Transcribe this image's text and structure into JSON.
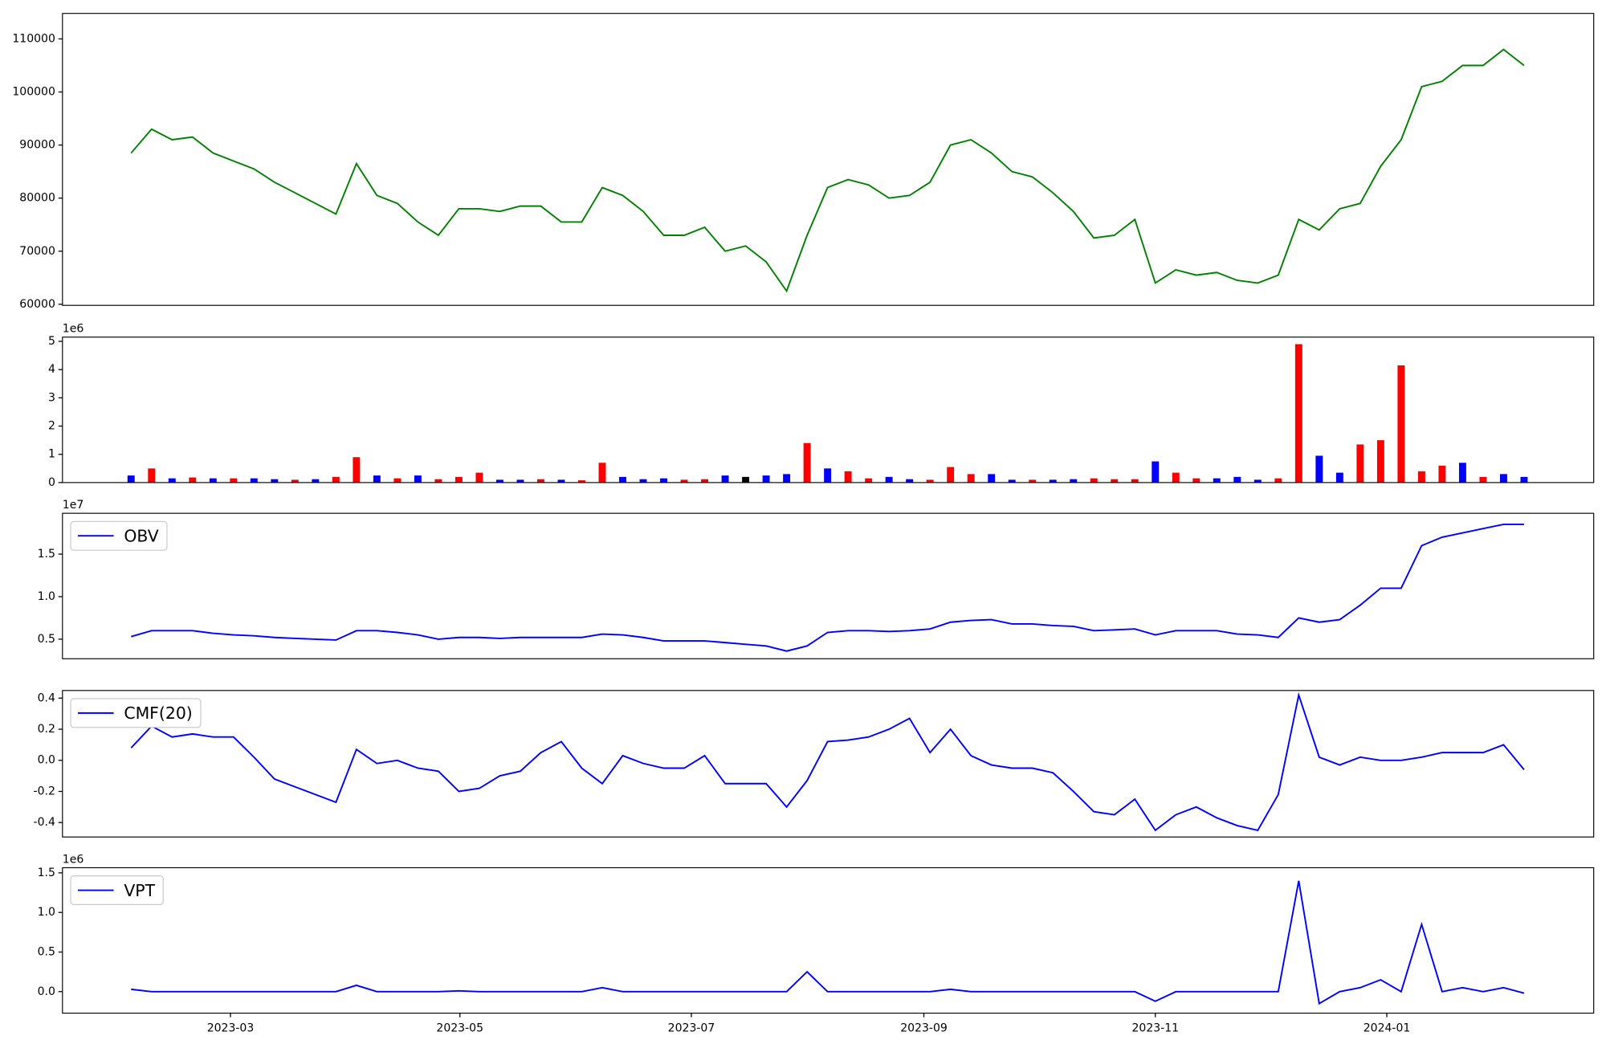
{
  "chart_data": [
    {
      "type": "line",
      "color": "#008000",
      "values": [
        88500,
        93000,
        91000,
        91500,
        88500,
        87000,
        85500,
        83000,
        81000,
        79000,
        77000,
        86500,
        80500,
        79000,
        75500,
        73000,
        78000,
        78000,
        77500,
        78500,
        78500,
        75500,
        75500,
        82000,
        80500,
        77500,
        73000,
        73000,
        74500,
        70000,
        71000,
        68000,
        62500,
        73000,
        82000,
        83500,
        82500,
        80000,
        80500,
        83000,
        90000,
        91000,
        88500,
        85000,
        84000,
        81000,
        77500,
        72500,
        73000,
        76000,
        64000,
        66500,
        65500,
        66000,
        64500,
        64000,
        65500,
        76000,
        74000,
        78000,
        79000,
        86000,
        91000,
        101000,
        102000,
        105000,
        105000,
        108000,
        105000
      ],
      "xlim": [
        -3.35,
        71.4
      ],
      "ylim": [
        59800,
        114800
      ],
      "yticks": [
        60000,
        70000,
        80000,
        90000,
        100000,
        110000
      ]
    },
    {
      "type": "bar",
      "offset_text": "1e6",
      "values": [
        0.25,
        0.5,
        0.15,
        0.18,
        0.15,
        0.15,
        0.15,
        0.12,
        0.1,
        0.12,
        0.2,
        0.9,
        0.25,
        0.15,
        0.25,
        0.12,
        0.2,
        0.35,
        0.1,
        0.1,
        0.12,
        0.1,
        0.08,
        0.7,
        0.2,
        0.12,
        0.15,
        0.1,
        0.12,
        0.25,
        0.2,
        0.25,
        0.3,
        1.4,
        0.5,
        0.4,
        0.15,
        0.2,
        0.12,
        0.1,
        0.55,
        0.3,
        0.3,
        0.1,
        0.1,
        0.1,
        0.12,
        0.15,
        0.12,
        0.12,
        0.75,
        0.35,
        0.15,
        0.15,
        0.2,
        0.1,
        0.15,
        4.9,
        0.95,
        0.35,
        1.35,
        1.5,
        4.15,
        0.4,
        0.6,
        0.7,
        0.2,
        0.3,
        0.2
      ],
      "colors": [
        "blue",
        "red",
        "blue",
        "red",
        "blue",
        "red",
        "blue",
        "blue",
        "red",
        "blue",
        "red",
        "red",
        "blue",
        "red",
        "blue",
        "red",
        "red",
        "red",
        "blue",
        "blue",
        "red",
        "blue",
        "red",
        "red",
        "blue",
        "blue",
        "blue",
        "red",
        "red",
        "blue",
        "black",
        "blue",
        "blue",
        "red",
        "blue",
        "red",
        "red",
        "blue",
        "blue",
        "red",
        "red",
        "red",
        "blue",
        "blue",
        "red",
        "blue",
        "blue",
        "red",
        "red",
        "red",
        "blue",
        "red",
        "red",
        "blue",
        "blue",
        "blue",
        "red",
        "red",
        "blue",
        "blue",
        "red",
        "red",
        "red",
        "red",
        "red",
        "blue",
        "red",
        "blue",
        "blue"
      ],
      "xlim": [
        -3.35,
        71.4
      ],
      "ylim": [
        0,
        5.15
      ],
      "yticks": [
        0,
        1,
        2,
        3,
        4,
        5
      ]
    },
    {
      "type": "line",
      "offset_text": "1e7",
      "legend": "upper left",
      "series": [
        {
          "name": "OBV",
          "color": "blue",
          "values": [
            0.53,
            0.6,
            0.6,
            0.6,
            0.57,
            0.55,
            0.54,
            0.52,
            0.51,
            0.5,
            0.49,
            0.6,
            0.6,
            0.58,
            0.55,
            0.5,
            0.52,
            0.52,
            0.51,
            0.52,
            0.52,
            0.52,
            0.52,
            0.56,
            0.55,
            0.52,
            0.48,
            0.48,
            0.48,
            0.46,
            0.44,
            0.42,
            0.36,
            0.42,
            0.58,
            0.6,
            0.6,
            0.59,
            0.6,
            0.62,
            0.7,
            0.72,
            0.73,
            0.68,
            0.68,
            0.66,
            0.65,
            0.6,
            0.61,
            0.62,
            0.55,
            0.6,
            0.6,
            0.6,
            0.56,
            0.55,
            0.52,
            0.75,
            0.7,
            0.73,
            0.9,
            1.1,
            1.1,
            1.6,
            1.7,
            1.75,
            1.8,
            1.85,
            1.85
          ]
        }
      ],
      "xlim": [
        -3.35,
        71.4
      ],
      "ylim": [
        0.27,
        1.98
      ],
      "yticks": [
        0.5,
        {
          "value": 1,
          "label": "1.0"
        },
        1.5
      ]
    },
    {
      "type": "line",
      "legend": "upper left",
      "series": [
        {
          "name": "CMF(20)",
          "color": "blue",
          "values": [
            0.08,
            0.22,
            0.15,
            0.17,
            0.15,
            0.15,
            0.02,
            -0.12,
            -0.17,
            -0.22,
            -0.27,
            0.07,
            -0.02,
            0.0,
            -0.05,
            -0.07,
            -0.2,
            -0.18,
            -0.1,
            -0.07,
            0.05,
            0.12,
            -0.05,
            -0.15,
            0.03,
            -0.02,
            -0.05,
            -0.05,
            0.03,
            -0.15,
            -0.15,
            -0.15,
            -0.3,
            -0.13,
            0.12,
            0.13,
            0.15,
            0.2,
            0.27,
            0.05,
            0.2,
            0.03,
            -0.03,
            -0.05,
            -0.05,
            -0.08,
            -0.2,
            -0.33,
            -0.35,
            -0.25,
            -0.45,
            -0.35,
            -0.3,
            -0.37,
            -0.42,
            -0.45,
            -0.22,
            0.42,
            0.02,
            -0.03,
            0.02,
            0.0,
            0.0,
            0.02,
            0.05,
            0.05,
            0.05,
            0.1,
            -0.06
          ]
        }
      ],
      "xlim": [
        -3.35,
        71.4
      ],
      "ylim": [
        -0.493,
        0.449
      ],
      "yticks": [
        -0.4,
        -0.2,
        {
          "value": 0,
          "label": "0.0"
        },
        0.2,
        0.4
      ]
    },
    {
      "type": "line",
      "offset_text": "1e6",
      "legend": "upper left",
      "series": [
        {
          "name": "VPT",
          "color": "blue",
          "values": [
            0.03,
            0.0,
            0.0,
            0.0,
            0.0,
            0.0,
            0.0,
            0.0,
            0.0,
            0.0,
            0.0,
            0.08,
            0.0,
            0.0,
            0.0,
            0.0,
            0.01,
            0.0,
            0.0,
            0.0,
            0.0,
            0.0,
            0.0,
            0.05,
            0.0,
            0.0,
            0.0,
            0.0,
            0.0,
            0.0,
            0.0,
            0.0,
            0.0,
            0.25,
            0.0,
            0.0,
            0.0,
            0.0,
            0.0,
            0.0,
            0.03,
            0.0,
            0.0,
            0.0,
            0.0,
            0.0,
            0.0,
            0.0,
            0.0,
            0.0,
            -0.12,
            0.0,
            0.0,
            0.0,
            0.0,
            0.0,
            0.0,
            1.4,
            -0.15,
            0.0,
            0.05,
            0.15,
            0.0,
            0.85,
            0.0,
            0.05,
            0.0,
            0.05,
            -0.02
          ]
        }
      ],
      "xlim": [
        -3.35,
        71.4
      ],
      "ylim": [
        -0.272,
        1.565
      ],
      "yticks": [
        {
          "value": 0,
          "label": "0.0"
        },
        0.5,
        {
          "value": 1,
          "label": "1.0"
        },
        1.5
      ],
      "xticks": [
        {
          "value": 4.85,
          "label": "2023-03"
        },
        {
          "value": 16.05,
          "label": "2023-05"
        },
        {
          "value": 27.35,
          "label": "2023-07"
        },
        {
          "value": 38.7,
          "label": "2023-09"
        },
        {
          "value": 50.0,
          "label": "2023-11"
        },
        {
          "value": 61.3,
          "label": "2024-01"
        }
      ]
    }
  ]
}
